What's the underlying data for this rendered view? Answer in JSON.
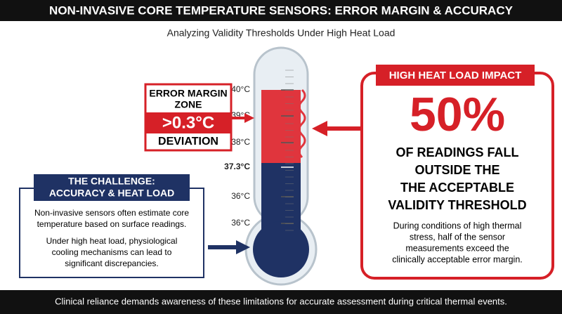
{
  "header": {
    "title": "NON-INVASIVE CORE TEMPERATURE SENSORS: ERROR MARGIN & ACCURACY",
    "subtitle": "Analyzing Validity Thresholds Under High Heat Load"
  },
  "thermometer": {
    "labels": [
      "40°C",
      "39°C",
      "38°C",
      "37.3°C",
      "36°C",
      "36°C"
    ]
  },
  "error_zone": {
    "lines": [
      "ERROR MARGIN",
      "ZONE"
    ],
    "value": ">0.3°C",
    "caption": "DEVIATION"
  },
  "challenge": {
    "title_lines": [
      "THE CHALLENGE:",
      "ACCURACY & HEAT LOAD"
    ],
    "paragraphs": [
      [
        "Non-invasive sensors often estimate core",
        "temperature based on surface readings."
      ],
      [
        "Under high heat load, physiological",
        "cooling mechanisms can lead to",
        "significant discrepancies."
      ]
    ]
  },
  "impact": {
    "title": "HIGH HEAT LOAD IMPACT",
    "value": "50%",
    "statement": [
      "OF READINGS FALL",
      "OUTSIDE THE",
      "THE ACCEPTABLE",
      "VALIDITY THRESHOLD"
    ],
    "body": [
      "During conditions of high thermal",
      "stress, half of the sensor",
      "measurements exceed the",
      "clinically acceptable error margin."
    ]
  },
  "footer": {
    "text": "Clinical reliance demands awareness of these limitations for accurate assessment during critical thermal events."
  }
}
